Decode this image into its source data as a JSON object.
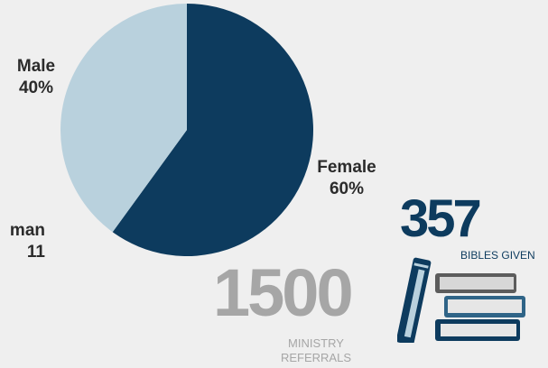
{
  "chart_data": {
    "type": "pie",
    "slices": [
      {
        "label": "Female",
        "value": 60,
        "display": "60%",
        "color": "#0d3b5e"
      },
      {
        "label": "Male",
        "value": 40,
        "display": "40%",
        "color": "#b9d1dd"
      }
    ],
    "cut_label": {
      "line1": "man",
      "line2": "11"
    }
  },
  "stats": {
    "bibles": {
      "number": "357",
      "caption": "BIBLES GIVEN",
      "color": "#0d3b5e"
    },
    "referrals": {
      "number": "1500",
      "caption_line1": "MINISTRY",
      "caption_line2": "REFERRALS",
      "color": "#a6a6a6"
    }
  },
  "icons": {
    "books": "books-icon"
  }
}
